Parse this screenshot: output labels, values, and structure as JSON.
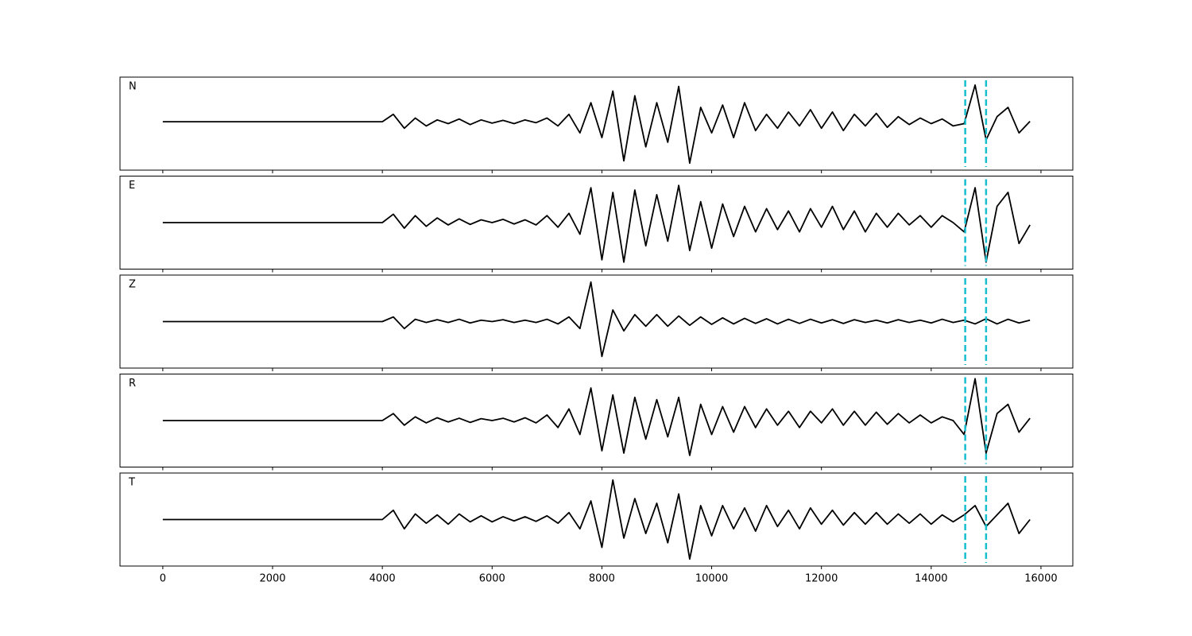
{
  "chart_data": {
    "type": "line",
    "x": [
      0,
      200,
      400,
      600,
      800,
      1000,
      1200,
      1400,
      1600,
      1800,
      2000,
      2200,
      2400,
      2600,
      2800,
      3000,
      3200,
      3400,
      3600,
      3800,
      4000,
      4200,
      4400,
      4600,
      4800,
      5000,
      5200,
      5400,
      5600,
      5800,
      6000,
      6200,
      6400,
      6600,
      6800,
      7000,
      7200,
      7400,
      7600,
      7800,
      8000,
      8200,
      8400,
      8600,
      8800,
      9000,
      9200,
      9400,
      9600,
      9800,
      10000,
      10200,
      10400,
      10600,
      10800,
      11000,
      11200,
      11400,
      11600,
      11800,
      12000,
      12200,
      12400,
      12600,
      12800,
      13000,
      13200,
      13400,
      13600,
      13800,
      14000,
      14200,
      14400,
      14600,
      14800,
      15000,
      15200,
      15400,
      15600,
      15800
    ],
    "series": [
      {
        "name": "N",
        "color": "#000000",
        "values": [
          0.04,
          0.04,
          0.04,
          0.04,
          0.04,
          0.04,
          0.04,
          0.04,
          0.04,
          0.04,
          0.04,
          0.04,
          0.04,
          0.04,
          0.04,
          0.04,
          0.04,
          0.04,
          0.04,
          0.04,
          0.04,
          0.2,
          -0.1,
          0.12,
          -0.05,
          0.08,
          0.0,
          0.1,
          -0.02,
          0.08,
          0.01,
          0.07,
          0.0,
          0.08,
          0.02,
          0.12,
          -0.05,
          0.2,
          -0.2,
          0.45,
          -0.3,
          0.7,
          -0.8,
          0.6,
          -0.5,
          0.45,
          -0.4,
          0.8,
          -0.85,
          0.35,
          -0.2,
          0.4,
          -0.3,
          0.45,
          -0.15,
          0.2,
          -0.1,
          0.25,
          -0.05,
          0.3,
          -0.1,
          0.25,
          -0.15,
          0.2,
          -0.05,
          0.22,
          -0.08,
          0.15,
          -0.02,
          0.12,
          0.0,
          0.1,
          -0.05,
          0.0,
          0.83,
          -0.35,
          0.15,
          0.35,
          -0.2,
          0.05
        ]
      },
      {
        "name": "E",
        "color": "#000000",
        "values": [
          0,
          0,
          0,
          0,
          0,
          0,
          0,
          0,
          0,
          0,
          0,
          0,
          0,
          0,
          0,
          0,
          0,
          0,
          0,
          0,
          0,
          0.18,
          -0.12,
          0.15,
          -0.08,
          0.1,
          -0.05,
          0.08,
          -0.04,
          0.06,
          0.0,
          0.07,
          -0.03,
          0.06,
          -0.05,
          0.15,
          -0.1,
          0.2,
          -0.25,
          0.75,
          -0.8,
          0.65,
          -0.85,
          0.7,
          -0.5,
          0.6,
          -0.4,
          0.8,
          -0.6,
          0.45,
          -0.55,
          0.4,
          -0.3,
          0.35,
          -0.2,
          0.3,
          -0.15,
          0.25,
          -0.2,
          0.3,
          -0.1,
          0.35,
          -0.15,
          0.25,
          -0.2,
          0.2,
          -0.1,
          0.2,
          -0.05,
          0.15,
          -0.1,
          0.15,
          0.0,
          -0.2,
          0.75,
          -0.85,
          0.35,
          0.65,
          -0.45,
          -0.05
        ]
      },
      {
        "name": "Z",
        "color": "#000000",
        "values": [
          0,
          0,
          0,
          0,
          0,
          0,
          0,
          0,
          0,
          0,
          0,
          0,
          0,
          0,
          0,
          0,
          0,
          0,
          0,
          0,
          0,
          0.1,
          -0.15,
          0.05,
          -0.02,
          0.04,
          -0.02,
          0.05,
          -0.03,
          0.03,
          0.0,
          0.04,
          -0.02,
          0.03,
          -0.02,
          0.05,
          -0.05,
          0.1,
          -0.15,
          0.85,
          -0.75,
          0.25,
          -0.2,
          0.15,
          -0.1,
          0.15,
          -0.1,
          0.12,
          -0.08,
          0.1,
          -0.06,
          0.08,
          -0.05,
          0.07,
          -0.04,
          0.06,
          -0.05,
          0.05,
          -0.04,
          0.05,
          -0.03,
          0.04,
          -0.04,
          0.04,
          -0.02,
          0.03,
          -0.03,
          0.04,
          -0.02,
          0.03,
          -0.03,
          0.05,
          -0.02,
          0.03,
          -0.05,
          0.06,
          -0.05,
          0.05,
          -0.03,
          0.03
        ]
      },
      {
        "name": "R",
        "color": "#000000",
        "values": [
          0,
          0,
          0,
          0,
          0,
          0,
          0,
          0,
          0,
          0,
          0,
          0,
          0,
          0,
          0,
          0,
          0,
          0,
          0,
          0,
          0,
          0.15,
          -0.1,
          0.08,
          -0.05,
          0.06,
          -0.03,
          0.05,
          -0.04,
          0.04,
          0.0,
          0.05,
          -0.03,
          0.06,
          -0.05,
          0.12,
          -0.15,
          0.25,
          -0.3,
          0.7,
          -0.65,
          0.55,
          -0.7,
          0.5,
          -0.4,
          0.45,
          -0.35,
          0.5,
          -0.75,
          0.35,
          -0.3,
          0.3,
          -0.25,
          0.3,
          -0.15,
          0.25,
          -0.1,
          0.2,
          -0.15,
          0.2,
          -0.05,
          0.25,
          -0.1,
          0.2,
          -0.1,
          0.18,
          -0.08,
          0.15,
          -0.05,
          0.12,
          -0.05,
          0.08,
          0.0,
          -0.3,
          0.9,
          -0.7,
          0.15,
          0.35,
          -0.25,
          0.05
        ]
      },
      {
        "name": "T",
        "color": "#000000",
        "values": [
          0,
          0,
          0,
          0,
          0,
          0,
          0,
          0,
          0,
          0,
          0,
          0,
          0,
          0,
          0,
          0,
          0,
          0,
          0,
          0,
          0,
          0.2,
          -0.2,
          0.12,
          -0.08,
          0.1,
          -0.1,
          0.12,
          -0.05,
          0.08,
          -0.05,
          0.06,
          -0.03,
          0.06,
          -0.04,
          0.08,
          -0.08,
          0.15,
          -0.2,
          0.4,
          -0.6,
          0.85,
          -0.4,
          0.45,
          -0.3,
          0.35,
          -0.5,
          0.55,
          -0.85,
          0.3,
          -0.35,
          0.3,
          -0.2,
          0.25,
          -0.25,
          0.3,
          -0.15,
          0.2,
          -0.2,
          0.25,
          -0.1,
          0.2,
          -0.12,
          0.15,
          -0.1,
          0.15,
          -0.1,
          0.12,
          -0.08,
          0.12,
          -0.1,
          0.1,
          -0.05,
          0.1,
          0.3,
          -0.15,
          0.1,
          0.35,
          -0.3,
          0.0
        ]
      }
    ],
    "vlines": [
      14620,
      15000
    ],
    "vline_color": "#17becf",
    "xlim": [
      -780,
      16580
    ],
    "ylim": [
      -1,
      1
    ],
    "xticks": [
      0,
      2000,
      4000,
      6000,
      8000,
      10000,
      12000,
      14000,
      16000
    ]
  }
}
